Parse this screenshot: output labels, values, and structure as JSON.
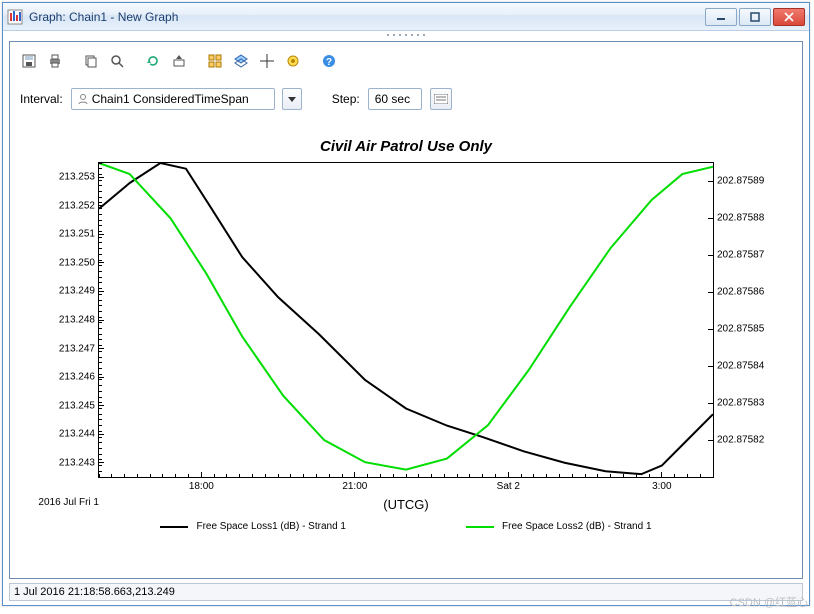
{
  "window": {
    "title": "Graph:  Chain1 - New Graph"
  },
  "toolbar": {
    "interval_label": "Interval:",
    "interval_value": "Chain1 ConsideredTimeSpan",
    "step_label": "Step:",
    "step_value": "60 sec"
  },
  "chart": {
    "title": "Civil Air Patrol Use Only",
    "title_fontsize": 15,
    "title_fontstyle": "italic bold",
    "xlabel": "(UTCG)",
    "corner_date": "2016 Jul Fri 1",
    "background_color": "#ffffff",
    "axis_color": "#000000",
    "x": {
      "range_hours": [
        16.0,
        28.0
      ],
      "ticks": [
        {
          "h": 18.0,
          "label": "18:00"
        },
        {
          "h": 21.0,
          "label": "21:00"
        },
        {
          "h": 24.0,
          "label": "Sat 2"
        },
        {
          "h": 27.0,
          "label": "3:00"
        }
      ]
    },
    "y_left": {
      "lim": [
        213.2425,
        213.2535
      ],
      "ticks": [
        213.243,
        213.244,
        213.245,
        213.246,
        213.247,
        213.248,
        213.249,
        213.25,
        213.251,
        213.252,
        213.253
      ],
      "tick_fmt": 3
    },
    "y_right": {
      "lim": [
        202.87581,
        202.875895
      ],
      "ticks": [
        202.87582,
        202.87583,
        202.87584,
        202.87585,
        202.87586,
        202.87587,
        202.87588,
        202.87589
      ],
      "tick_fmt": 5
    },
    "series": [
      {
        "name": "Free Space Loss1 (dB) - Strand 1",
        "axis": "left",
        "color": "#000000",
        "width": 2,
        "points": [
          [
            16.0,
            213.2519
          ],
          [
            16.6,
            213.2528
          ],
          [
            17.2,
            213.2535
          ],
          [
            17.7,
            213.2533
          ],
          [
            18.2,
            213.2519
          ],
          [
            18.8,
            213.2502
          ],
          [
            19.5,
            213.2488
          ],
          [
            20.3,
            213.2475
          ],
          [
            21.2,
            213.2459
          ],
          [
            22.0,
            213.2449
          ],
          [
            22.8,
            213.2443
          ],
          [
            23.5,
            213.2439
          ],
          [
            24.3,
            213.2434
          ],
          [
            25.1,
            213.243
          ],
          [
            25.9,
            213.2427
          ],
          [
            26.6,
            213.2426
          ],
          [
            27.0,
            213.2429
          ],
          [
            27.5,
            213.2438
          ],
          [
            28.0,
            213.2447
          ]
        ]
      },
      {
        "name": "Free Space Loss2 (dB) - Strand 1",
        "axis": "right",
        "color": "#00dd00",
        "width": 2,
        "points": [
          [
            16.0,
            202.875895
          ],
          [
            16.6,
            202.875892
          ],
          [
            17.4,
            202.87588
          ],
          [
            18.1,
            202.875865
          ],
          [
            18.8,
            202.875848
          ],
          [
            19.6,
            202.875832
          ],
          [
            20.4,
            202.87582
          ],
          [
            21.2,
            202.875814
          ],
          [
            22.0,
            202.875812
          ],
          [
            22.8,
            202.875815
          ],
          [
            23.6,
            202.875824
          ],
          [
            24.4,
            202.875839
          ],
          [
            25.2,
            202.875856
          ],
          [
            26.0,
            202.875872
          ],
          [
            26.8,
            202.875885
          ],
          [
            27.4,
            202.875892
          ],
          [
            28.0,
            202.875894
          ]
        ]
      }
    ],
    "legend": [
      {
        "label": "Free Space Loss1 (dB) - Strand 1",
        "color": "#000000"
      },
      {
        "label": "Free Space Loss2 (dB) - Strand 1",
        "color": "#00dd00"
      }
    ]
  },
  "status": "1 Jul 2016 21:18:58.663,213.249",
  "watermark": "CSDN @红蓝心"
}
